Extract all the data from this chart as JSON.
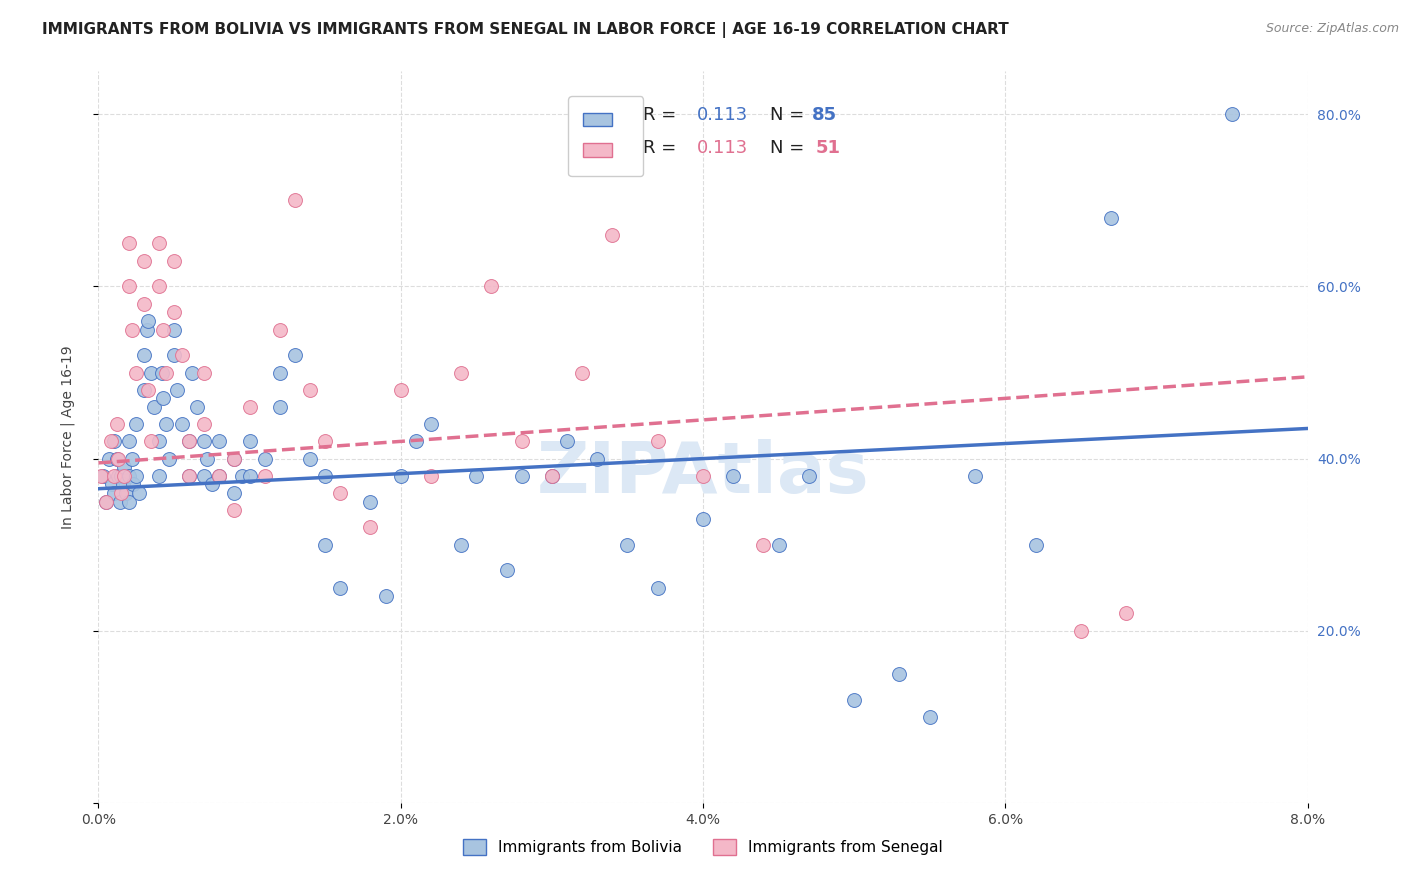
{
  "title": "IMMIGRANTS FROM BOLIVIA VS IMMIGRANTS FROM SENEGAL IN LABOR FORCE | AGE 16-19 CORRELATION CHART",
  "source": "Source: ZipAtlas.com",
  "ylabel": "In Labor Force | Age 16-19",
  "xlim": [
    0.0,
    0.08
  ],
  "ylim": [
    0.0,
    0.85
  ],
  "xticks": [
    0.0,
    0.02,
    0.04,
    0.06,
    0.08
  ],
  "yticks": [
    0.0,
    0.2,
    0.4,
    0.6,
    0.8
  ],
  "xtick_labels": [
    "0.0%",
    "2.0%",
    "4.0%",
    "6.0%",
    "8.0%"
  ],
  "ytick_labels": [
    "",
    "20.0%",
    "40.0%",
    "60.0%",
    "80.0%"
  ],
  "bolivia_color": "#a8c4e0",
  "senegal_color": "#f4b8c8",
  "bolivia_line_color": "#4472c4",
  "senegal_line_color": "#e07090",
  "bolivia_R": 0.113,
  "bolivia_N": 85,
  "senegal_R": 0.113,
  "senegal_N": 51,
  "legend_label_bolivia": "Immigrants from Bolivia",
  "legend_label_senegal": "Immigrants from Senegal",
  "bolivia_scatter_x": [
    0.0003,
    0.0005,
    0.0007,
    0.0009,
    0.001,
    0.001,
    0.0012,
    0.0013,
    0.0014,
    0.0015,
    0.0016,
    0.0017,
    0.0018,
    0.002,
    0.002,
    0.002,
    0.0022,
    0.0023,
    0.0025,
    0.0025,
    0.0027,
    0.003,
    0.003,
    0.0032,
    0.0033,
    0.0035,
    0.0037,
    0.004,
    0.004,
    0.0042,
    0.0043,
    0.0045,
    0.0047,
    0.005,
    0.005,
    0.0052,
    0.0055,
    0.006,
    0.006,
    0.0062,
    0.0065,
    0.007,
    0.007,
    0.0072,
    0.0075,
    0.008,
    0.008,
    0.009,
    0.009,
    0.0095,
    0.01,
    0.01,
    0.011,
    0.012,
    0.012,
    0.013,
    0.014,
    0.015,
    0.015,
    0.016,
    0.018,
    0.019,
    0.02,
    0.021,
    0.022,
    0.024,
    0.025,
    0.027,
    0.028,
    0.03,
    0.031,
    0.033,
    0.035,
    0.037,
    0.04,
    0.042,
    0.045,
    0.047,
    0.05,
    0.053,
    0.055,
    0.058,
    0.062,
    0.067,
    0.075
  ],
  "bolivia_scatter_y": [
    0.38,
    0.35,
    0.4,
    0.37,
    0.42,
    0.36,
    0.4,
    0.38,
    0.35,
    0.38,
    0.37,
    0.39,
    0.36,
    0.42,
    0.38,
    0.35,
    0.4,
    0.37,
    0.44,
    0.38,
    0.36,
    0.52,
    0.48,
    0.55,
    0.56,
    0.5,
    0.46,
    0.42,
    0.38,
    0.5,
    0.47,
    0.44,
    0.4,
    0.55,
    0.52,
    0.48,
    0.44,
    0.42,
    0.38,
    0.5,
    0.46,
    0.42,
    0.38,
    0.4,
    0.37,
    0.42,
    0.38,
    0.4,
    0.36,
    0.38,
    0.42,
    0.38,
    0.4,
    0.5,
    0.46,
    0.52,
    0.4,
    0.38,
    0.3,
    0.25,
    0.35,
    0.24,
    0.38,
    0.42,
    0.44,
    0.3,
    0.38,
    0.27,
    0.38,
    0.38,
    0.42,
    0.4,
    0.3,
    0.25,
    0.33,
    0.38,
    0.3,
    0.38,
    0.12,
    0.15,
    0.1,
    0.38,
    0.3,
    0.68,
    0.8
  ],
  "senegal_scatter_x": [
    0.0002,
    0.0005,
    0.0008,
    0.001,
    0.0012,
    0.0013,
    0.0015,
    0.0017,
    0.002,
    0.002,
    0.0022,
    0.0025,
    0.003,
    0.003,
    0.0033,
    0.0035,
    0.004,
    0.004,
    0.0043,
    0.0045,
    0.005,
    0.005,
    0.0055,
    0.006,
    0.006,
    0.007,
    0.007,
    0.008,
    0.009,
    0.009,
    0.01,
    0.011,
    0.012,
    0.013,
    0.014,
    0.015,
    0.016,
    0.018,
    0.02,
    0.022,
    0.024,
    0.026,
    0.028,
    0.03,
    0.032,
    0.034,
    0.037,
    0.04,
    0.044,
    0.065,
    0.068
  ],
  "senegal_scatter_y": [
    0.38,
    0.35,
    0.42,
    0.38,
    0.44,
    0.4,
    0.36,
    0.38,
    0.65,
    0.6,
    0.55,
    0.5,
    0.63,
    0.58,
    0.48,
    0.42,
    0.65,
    0.6,
    0.55,
    0.5,
    0.63,
    0.57,
    0.52,
    0.42,
    0.38,
    0.5,
    0.44,
    0.38,
    0.4,
    0.34,
    0.46,
    0.38,
    0.55,
    0.7,
    0.48,
    0.42,
    0.36,
    0.32,
    0.48,
    0.38,
    0.5,
    0.6,
    0.42,
    0.38,
    0.5,
    0.66,
    0.42,
    0.38,
    0.3,
    0.2,
    0.22
  ],
  "bolivia_trend_x": [
    0.0,
    0.08
  ],
  "bolivia_trend_y": [
    0.365,
    0.435
  ],
  "senegal_trend_x": [
    0.0,
    0.08
  ],
  "senegal_trend_y": [
    0.395,
    0.495
  ],
  "background_color": "#ffffff",
  "grid_color": "#dddddd",
  "title_fontsize": 11,
  "axis_label_fontsize": 10,
  "tick_fontsize": 10,
  "right_tick_color": "#4472c4",
  "watermark_color": "#dce8f5"
}
